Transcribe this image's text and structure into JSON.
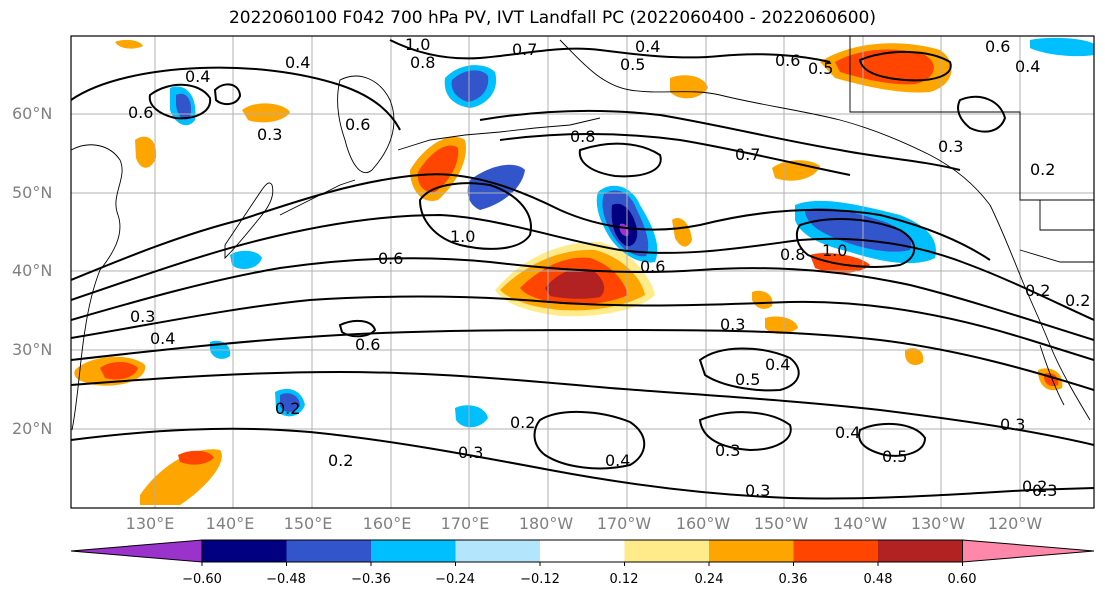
{
  "title": "2022060100 F042 700 hPa PV, IVT Landfall PC (2022060400 - 2022060600)",
  "latitude_labels": [
    "60°N",
    "50°N",
    "40°N",
    "30°N",
    "20°N"
  ],
  "longitude_labels": [
    "130°E",
    "140°E",
    "150°E",
    "160°E",
    "170°E",
    "180°W",
    "170°W",
    "160°W",
    "150°W",
    "140°W",
    "130°W",
    "120°W"
  ],
  "contour_labels": [
    "1.0",
    "0.4",
    "0.8",
    "0.4",
    "0.5",
    "0.7",
    "0.6",
    "0.5",
    "0.6",
    "0.4",
    "0.4",
    "0.6",
    "0.6",
    "0.3",
    "0.8",
    "0.7",
    "0.3",
    "0.2",
    "1.0",
    "0.6",
    "0.8",
    "1.0",
    "0.6",
    "0.3",
    "0.2",
    "0.2",
    "0.4",
    "0.6",
    "0.3",
    "0.5",
    "0.4",
    "0.2",
    "0.2",
    "0.3",
    "0.2",
    "0.4",
    "0.3",
    "0.4",
    "0.3",
    "0.5",
    "0.3",
    "0.2",
    "0.3"
  ],
  "colorbar": {
    "ticks": [
      "−0.60",
      "−0.48",
      "−0.36",
      "−0.24",
      "−0.12",
      "0.12",
      "0.24",
      "0.36",
      "0.48",
      "0.60"
    ],
    "colors": [
      "#9933cc",
      "#000080",
      "#3355cc",
      "#00bfff",
      "#b3e5fc",
      "#ffffff",
      "#ffeb8a",
      "#ffa500",
      "#ff4500",
      "#b22222",
      "#ff88aa"
    ]
  },
  "colors": {
    "neg_strong": "#000080",
    "neg_mid": "#3355cc",
    "neg_light": "#00bfff",
    "neg_faint": "#b3e5fc",
    "pos_faint": "#ffeb8a",
    "pos_light": "#ffa500",
    "pos_mid": "#ff4500",
    "pos_strong": "#b22222",
    "grid": "#b0b0b0",
    "contour": "#000000"
  }
}
